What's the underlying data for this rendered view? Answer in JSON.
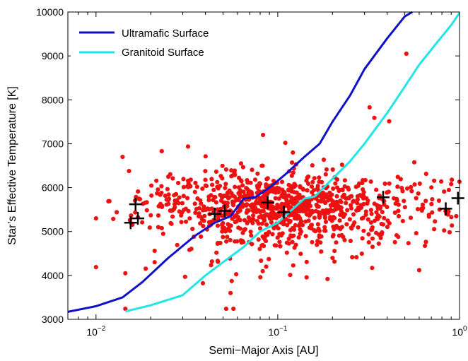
{
  "chart_data": {
    "type": "scatter",
    "xlabel": "Semi−Major Axis [AU]",
    "ylabel": "Star’s Effective Temperature [K]",
    "xscale": "log",
    "xlim": [
      0.007,
      1.0
    ],
    "ylim": [
      3000,
      10000
    ],
    "x_ticks": [
      {
        "value": 0.01,
        "base": "10",
        "exp": "−2"
      },
      {
        "value": 0.1,
        "base": "10",
        "exp": "−1"
      },
      {
        "value": 1.0,
        "base": "10",
        "exp": "0"
      }
    ],
    "y_ticks": [
      3000,
      4000,
      5000,
      6000,
      7000,
      8000,
      9000,
      10000
    ],
    "y_tick_labels": [
      "3000",
      "4000",
      "5000",
      "6000",
      "7000",
      "8000",
      "9000",
      "10000"
    ],
    "grid": false,
    "legend_position": "top-left",
    "lines": [
      {
        "name": "Ultramafic Surface",
        "color": "#1010c8",
        "x": [
          0.007,
          0.01,
          0.014,
          0.018,
          0.025,
          0.035,
          0.045,
          0.055,
          0.065,
          0.075,
          0.09,
          0.11,
          0.14,
          0.17,
          0.2,
          0.25,
          0.3,
          0.4,
          0.5,
          0.55
        ],
        "y": [
          3170,
          3300,
          3500,
          3850,
          4400,
          4900,
          5200,
          5350,
          5750,
          5780,
          6000,
          6300,
          6700,
          7000,
          7500,
          8100,
          8700,
          9400,
          9900,
          10000
        ]
      },
      {
        "name": "Granitoid Surface",
        "color": "#22e6e6",
        "x": [
          0.0145,
          0.02,
          0.03,
          0.04,
          0.05,
          0.065,
          0.08,
          0.1,
          0.12,
          0.14,
          0.16,
          0.2,
          0.25,
          0.3,
          0.4,
          0.5,
          0.6,
          0.75,
          0.9,
          1.0
        ],
        "y": [
          3180,
          3320,
          3550,
          4000,
          4300,
          4650,
          5000,
          5200,
          5500,
          5750,
          5800,
          6200,
          6600,
          7000,
          7700,
          8300,
          8800,
          9300,
          9700,
          9980
        ]
      }
    ],
    "markers": {
      "name": "highlighted",
      "color": "#000000",
      "symbol": "plus",
      "x": [
        0.0155,
        0.017,
        0.0165,
        0.045,
        0.051,
        0.088,
        0.108,
        0.38,
        0.84,
        0.98
      ],
      "y": [
        5200,
        5300,
        5620,
        5400,
        5470,
        5660,
        5440,
        5780,
        5520,
        5760
      ]
    },
    "points": {
      "color": "#ee1111",
      "cluster_center_x": 0.1,
      "cluster_center_y": 5600,
      "count": 1000,
      "outliers": [
        {
          "x": 0.51,
          "y": 9050
        },
        {
          "x": 0.32,
          "y": 7830
        },
        {
          "x": 0.083,
          "y": 7200
        },
        {
          "x": 0.11,
          "y": 7020
        },
        {
          "x": 0.014,
          "y": 6700
        },
        {
          "x": 0.34,
          "y": 7590
        },
        {
          "x": 0.41,
          "y": 7510
        },
        {
          "x": 0.013,
          "y": 5440
        },
        {
          "x": 0.01,
          "y": 5300
        },
        {
          "x": 0.01,
          "y": 4190
        },
        {
          "x": 0.0145,
          "y": 4050
        },
        {
          "x": 0.0145,
          "y": 3240
        },
        {
          "x": 0.052,
          "y": 3240
        },
        {
          "x": 0.057,
          "y": 3240
        },
        {
          "x": 0.6,
          "y": 4120
        },
        {
          "x": 0.9,
          "y": 6080
        },
        {
          "x": 0.96,
          "y": 5350
        },
        {
          "x": 0.021,
          "y": 4300
        },
        {
          "x": 0.023,
          "y": 6830
        },
        {
          "x": 0.022,
          "y": 5100
        }
      ]
    }
  }
}
